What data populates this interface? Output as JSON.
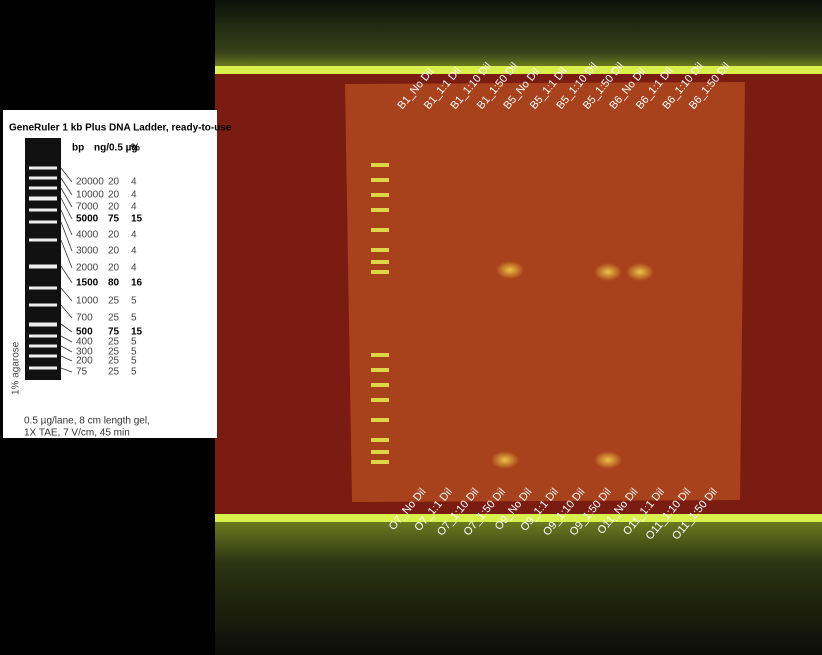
{
  "ladder": {
    "title": "GeneRuler 1 kb Plus DNA Ladder, ready-to-use",
    "header": [
      "bp",
      "ng/0.5 µg",
      "%"
    ],
    "rows": [
      {
        "cells": [
          "20000",
          "20",
          "4"
        ],
        "bold": false
      },
      {
        "cells": [
          "10000",
          "20",
          "4"
        ],
        "bold": false
      },
      {
        "cells": [
          "7000",
          "20",
          "4"
        ],
        "bold": false
      },
      {
        "cells": [
          "5000",
          "75",
          "15"
        ],
        "bold": true
      },
      {
        "cells": [
          "4000",
          "20",
          "4"
        ],
        "bold": false
      },
      {
        "cells": [
          "3000",
          "20",
          "4"
        ],
        "bold": false
      },
      {
        "cells": [
          "2000",
          "20",
          "4"
        ],
        "bold": false
      },
      {
        "cells": [
          "1500",
          "80",
          "16"
        ],
        "bold": true
      },
      {
        "cells": [
          "1000",
          "25",
          "5"
        ],
        "bold": false
      },
      {
        "cells": [
          "700",
          "25",
          "5"
        ],
        "bold": false
      },
      {
        "cells": [
          "500",
          "75",
          "15"
        ],
        "bold": true
      },
      {
        "cells": [
          "400",
          "25",
          "5"
        ],
        "bold": false
      },
      {
        "cells": [
          "300",
          "25",
          "5"
        ],
        "bold": false
      },
      {
        "cells": [
          "200",
          "25",
          "5"
        ],
        "bold": false
      },
      {
        "cells": [
          "75",
          "25",
          "5"
        ],
        "bold": false
      }
    ],
    "side_label": "1% agarose",
    "footer": [
      "0.5 µg/lane, 8 cm length gel,",
      "1X TAE, 7 V/cm, 45 min"
    ]
  },
  "gel": {
    "top_lanes": [
      "B1_No Dil",
      "B1_1:1 Dil",
      "B1_1:10 Dil",
      "B1_1:50 Dil",
      "B5_No Dil",
      "B5_1:1 Dil",
      "B5_1:10 Dil",
      "B5_1:50 Dil",
      "B6_No Dil",
      "B6_1:1 Dil",
      "B6_1:10 Dil",
      "B6_1:50 Dil"
    ],
    "bottom_lanes": [
      "O7_No Dil",
      "O7_1:1 Dil",
      "O7_1:10 Dil",
      "O7_1:50 Dil",
      "O9_No Dil",
      "O9_1:1 Dil",
      "O9_1:10 Dil",
      "O9_1:50 Dil",
      "O11_No Dil",
      "O11_1:1 Dil",
      "O11_1:10 Dil",
      "O11_1:50 Dil"
    ]
  }
}
